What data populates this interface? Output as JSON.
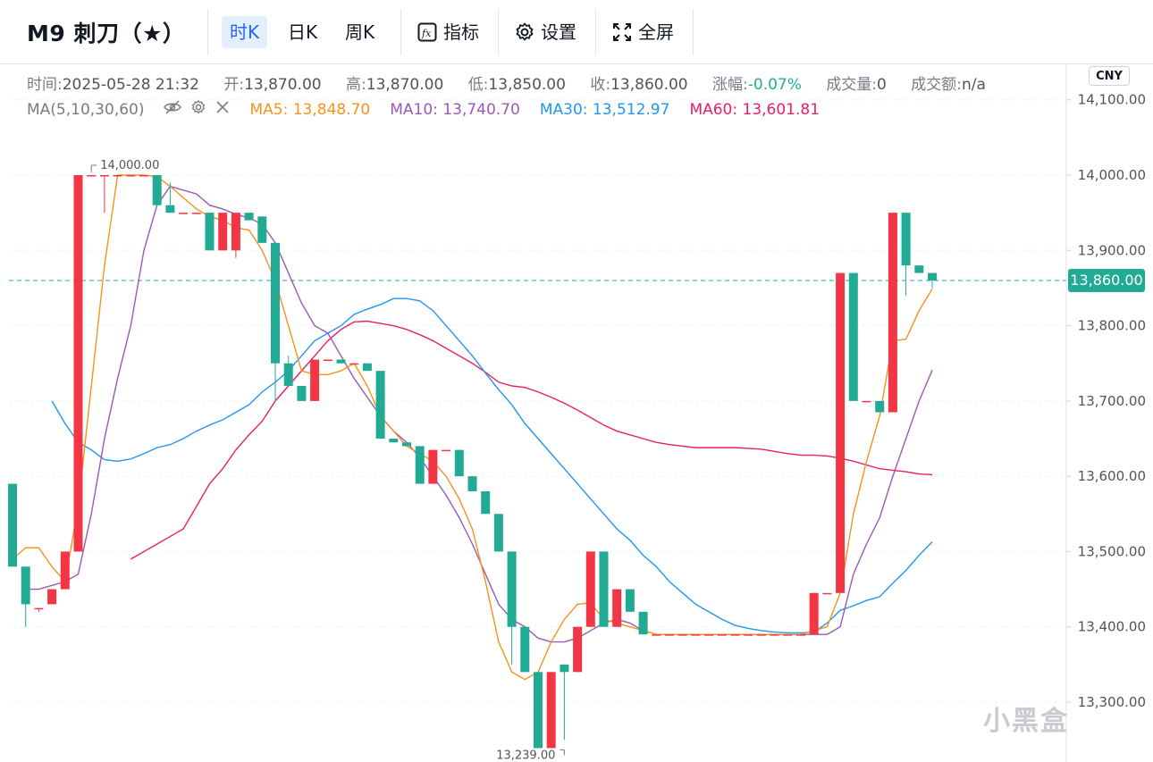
{
  "header": {
    "title": "M9 刺刀（★）",
    "timeframes": [
      {
        "label": "时K",
        "active": true
      },
      {
        "label": "日K",
        "active": false
      },
      {
        "label": "周K",
        "active": false
      }
    ],
    "tools": {
      "indicators": "指标",
      "settings": "设置",
      "fullscreen": "全屏"
    }
  },
  "info": {
    "time_key": "时间:",
    "time_val": "2025-05-28 21:32",
    "open_key": "开:",
    "open_val": "13,870.00",
    "high_key": "高:",
    "high_val": "13,870.00",
    "low_key": "低:",
    "low_val": "13,850.00",
    "close_key": "收:",
    "close_val": "13,860.00",
    "chg_key": "涨幅:",
    "chg_val": "-0.07%",
    "vol_key": "成交量:",
    "vol_val": "0",
    "amt_key": "成交额:",
    "amt_val": "n/a"
  },
  "ma": {
    "label": "MA(5,10,30,60)",
    "ma5": "MA5: 13,848.70",
    "ma10": "MA10: 13,740.70",
    "ma30": "MA30: 13,512.97",
    "ma60": "MA60: 13,601.81"
  },
  "currency": "CNY",
  "last_price_label": "13,860.00",
  "watermark": "小黑盒",
  "colors": {
    "up": "#f23645",
    "down": "#22ab94",
    "ma5": "#f7931a",
    "ma10": "#9b59b6",
    "ma30": "#2196f3",
    "ma60": "#e91e63"
  },
  "chart_data": {
    "type": "candlestick",
    "y_ticks": [
      "14,100.00",
      "14,000.00",
      "13,900.00",
      "13,800.00",
      "13,700.00",
      "13,600.00",
      "13,500.00",
      "13,400.00",
      "13,300.00"
    ],
    "y_tick_values": [
      14100,
      14000,
      13900,
      13800,
      13700,
      13600,
      13500,
      13400,
      13300
    ],
    "ylim": [
      13250,
      14135
    ],
    "last_price": 13860,
    "max_label": "14,000.00",
    "min_label": "13,239.00",
    "candles": [
      {
        "o": 13590,
        "h": 13590,
        "c": 13480,
        "l": 13480
      },
      {
        "o": 13480,
        "h": 13480,
        "c": 13430,
        "l": 13400
      },
      {
        "o": 13425,
        "h": 13425,
        "c": 13425,
        "l": 13420
      },
      {
        "o": 13430,
        "h": 13450,
        "c": 13450,
        "l": 13430
      },
      {
        "o": 13450,
        "h": 13500,
        "c": 13500,
        "l": 13450
      },
      {
        "o": 13500,
        "h": 14000,
        "c": 14000,
        "l": 13500
      },
      {
        "o": 14000,
        "h": 14000,
        "c": 14000,
        "l": 14000
      },
      {
        "o": 14000,
        "h": 14000,
        "c": 14000,
        "l": 13950
      },
      {
        "o": 14000,
        "h": 14000,
        "c": 14000,
        "l": 14000
      },
      {
        "o": 14000,
        "h": 14000,
        "c": 14000,
        "l": 14000
      },
      {
        "o": 14000,
        "h": 14000,
        "c": 14000,
        "l": 14000
      },
      {
        "o": 14000,
        "h": 14000,
        "c": 13960,
        "l": 13960
      },
      {
        "o": 13960,
        "h": 13990,
        "c": 13950,
        "l": 13950
      },
      {
        "o": 13950,
        "h": 13950,
        "c": 13950,
        "l": 13950
      },
      {
        "o": 13950,
        "h": 13950,
        "c": 13950,
        "l": 13950
      },
      {
        "o": 13950,
        "h": 13950,
        "c": 13900,
        "l": 13900
      },
      {
        "o": 13900,
        "h": 13950,
        "c": 13950,
        "l": 13900
      },
      {
        "o": 13900,
        "h": 13950,
        "c": 13950,
        "l": 13890
      },
      {
        "o": 13950,
        "h": 13950,
        "c": 13940,
        "l": 13940
      },
      {
        "o": 13945,
        "h": 13945,
        "c": 13910,
        "l": 13910
      },
      {
        "o": 13910,
        "h": 13910,
        "c": 13750,
        "l": 13700
      },
      {
        "o": 13750,
        "h": 13760,
        "c": 13720,
        "l": 13720
      },
      {
        "o": 13720,
        "h": 13720,
        "c": 13700,
        "l": 13700
      },
      {
        "o": 13700,
        "h": 13755,
        "c": 13755,
        "l": 13700
      },
      {
        "o": 13755,
        "h": 13755,
        "c": 13755,
        "l": 13755
      },
      {
        "o": 13755,
        "h": 13755,
        "c": 13750,
        "l": 13750
      },
      {
        "o": 13750,
        "h": 13750,
        "c": 13750,
        "l": 13750
      },
      {
        "o": 13750,
        "h": 13750,
        "c": 13740,
        "l": 13740
      },
      {
        "o": 13740,
        "h": 13740,
        "c": 13650,
        "l": 13650
      },
      {
        "o": 13650,
        "h": 13650,
        "c": 13645,
        "l": 13645
      },
      {
        "o": 13645,
        "h": 13645,
        "c": 13640,
        "l": 13640
      },
      {
        "o": 13640,
        "h": 13640,
        "c": 13590,
        "l": 13590
      },
      {
        "o": 13590,
        "h": 13635,
        "c": 13635,
        "l": 13590
      },
      {
        "o": 13635,
        "h": 13635,
        "c": 13635,
        "l": 13635
      },
      {
        "o": 13635,
        "h": 13635,
        "c": 13600,
        "l": 13600
      },
      {
        "o": 13600,
        "h": 13600,
        "c": 13580,
        "l": 13580
      },
      {
        "o": 13580,
        "h": 13580,
        "c": 13550,
        "l": 13550
      },
      {
        "o": 13550,
        "h": 13550,
        "c": 13500,
        "l": 13500
      },
      {
        "o": 13500,
        "h": 13500,
        "c": 13400,
        "l": 13350
      },
      {
        "o": 13400,
        "h": 13400,
        "c": 13340,
        "l": 13340
      },
      {
        "o": 13340,
        "h": 13340,
        "c": 13239,
        "l": 13239
      },
      {
        "o": 13239,
        "h": 13340,
        "c": 13340,
        "l": 13239
      },
      {
        "o": 13350,
        "h": 13350,
        "c": 13340,
        "l": 13250
      },
      {
        "o": 13340,
        "h": 13400,
        "c": 13400,
        "l": 13340
      },
      {
        "o": 13400,
        "h": 13500,
        "c": 13500,
        "l": 13400
      },
      {
        "o": 13500,
        "h": 13500,
        "c": 13400,
        "l": 13400
      },
      {
        "o": 13400,
        "h": 13450,
        "c": 13450,
        "l": 13400
      },
      {
        "o": 13450,
        "h": 13450,
        "c": 13420,
        "l": 13420
      },
      {
        "o": 13420,
        "h": 13420,
        "c": 13390,
        "l": 13390
      },
      {
        "o": 13390,
        "h": 13390,
        "c": 13390,
        "l": 13390
      },
      {
        "o": 13390,
        "h": 13390,
        "c": 13390,
        "l": 13390
      },
      {
        "o": 13390,
        "h": 13390,
        "c": 13390,
        "l": 13390
      },
      {
        "o": 13390,
        "h": 13390,
        "c": 13390,
        "l": 13390
      },
      {
        "o": 13390,
        "h": 13390,
        "c": 13390,
        "l": 13390
      },
      {
        "o": 13390,
        "h": 13390,
        "c": 13390,
        "l": 13390
      },
      {
        "o": 13390,
        "h": 13390,
        "c": 13390,
        "l": 13390
      },
      {
        "o": 13390,
        "h": 13390,
        "c": 13390,
        "l": 13390
      },
      {
        "o": 13390,
        "h": 13390,
        "c": 13390,
        "l": 13390
      },
      {
        "o": 13390,
        "h": 13390,
        "c": 13390,
        "l": 13390
      },
      {
        "o": 13390,
        "h": 13390,
        "c": 13390,
        "l": 13390
      },
      {
        "o": 13390,
        "h": 13390,
        "c": 13390,
        "l": 13390
      },
      {
        "o": 13390,
        "h": 13445,
        "c": 13445,
        "l": 13390
      },
      {
        "o": 13445,
        "h": 13445,
        "c": 13445,
        "l": 13445
      },
      {
        "o": 13445,
        "h": 13870,
        "c": 13870,
        "l": 13445
      },
      {
        "o": 13870,
        "h": 13870,
        "c": 13700,
        "l": 13700
      },
      {
        "o": 13700,
        "h": 13700,
        "c": 13700,
        "l": 13700
      },
      {
        "o": 13700,
        "h": 13700,
        "c": 13685,
        "l": 13685
      },
      {
        "o": 13685,
        "h": 13950,
        "c": 13950,
        "l": 13685
      },
      {
        "o": 13950,
        "h": 13950,
        "c": 13880,
        "l": 13840
      },
      {
        "o": 13880,
        "h": 13880,
        "c": 13870,
        "l": 13870
      },
      {
        "o": 13870,
        "h": 13870,
        "c": 13860,
        "l": 13850
      }
    ],
    "ma5": [
      13490,
      13505,
      13505,
      13480,
      13460,
      13560,
      13720,
      13880,
      14000,
      14000,
      14000,
      13998,
      13985,
      13970,
      13955,
      13945,
      13940,
      13930,
      13927,
      13900,
      13860,
      13800,
      13740,
      13735,
      13735,
      13740,
      13750,
      13720,
      13680,
      13660,
      13640,
      13630,
      13620,
      13600,
      13570,
      13530,
      13460,
      13380,
      13340,
      13330,
      13340,
      13380,
      13410,
      13430,
      13432,
      13410,
      13405,
      13400,
      13395,
      13390,
      13390,
      13390,
      13390,
      13390,
      13390,
      13390,
      13390,
      13390,
      13390,
      13390,
      13390,
      13395,
      13400,
      13445,
      13550,
      13620,
      13680,
      13780,
      13782,
      13820,
      13849
    ],
    "ma10": [
      13450,
      13450,
      13455,
      13460,
      13470,
      13550,
      13650,
      13730,
      13800,
      13900,
      13960,
      13985,
      13980,
      13975,
      13960,
      13955,
      13948,
      13943,
      13935,
      13910,
      13870,
      13830,
      13800,
      13790,
      13760,
      13730,
      13705,
      13680,
      13660,
      13645,
      13625,
      13600,
      13575,
      13545,
      13510,
      13470,
      13430,
      13410,
      13400,
      13385,
      13380,
      13380,
      13385,
      13395,
      13405,
      13410,
      13405,
      13395,
      13390,
      13390,
      13390,
      13390,
      13390,
      13390,
      13390,
      13390,
      13390,
      13390,
      13390,
      13390,
      13390,
      13390,
      13400,
      13470,
      13510,
      13545,
      13600,
      13650,
      13700,
      13741
    ],
    "ma30": [
      13700,
      13670,
      13645,
      13635,
      13622,
      13620,
      13623,
      13630,
      13638,
      13642,
      13650,
      13660,
      13668,
      13675,
      13685,
      13695,
      13712,
      13725,
      13740,
      13760,
      13780,
      13790,
      13800,
      13815,
      13822,
      13828,
      13836,
      13836,
      13833,
      13820,
      13800,
      13780,
      13760,
      13737,
      13715,
      13695,
      13670,
      13650,
      13630,
      13610,
      13590,
      13570,
      13550,
      13530,
      13515,
      13495,
      13480,
      13460,
      13445,
      13430,
      13420,
      13410,
      13402,
      13398,
      13395,
      13393,
      13392,
      13392,
      13393,
      13405,
      13422,
      13428,
      13435,
      13440,
      13458,
      13475,
      13495,
      13513
    ],
    "ma60": [
      13490,
      13500,
      13510,
      13520,
      13530,
      13560,
      13590,
      13610,
      13635,
      13655,
      13673,
      13700,
      13720,
      13740,
      13760,
      13780,
      13795,
      13805,
      13806,
      13803,
      13800,
      13795,
      13788,
      13780,
      13770,
      13760,
      13750,
      13738,
      13725,
      13720,
      13718,
      13712,
      13705,
      13697,
      13688,
      13678,
      13668,
      13660,
      13655,
      13650,
      13645,
      13642,
      13640,
      13638,
      13638,
      13638,
      13638,
      13637,
      13636,
      13633,
      13630,
      13628,
      13628,
      13627,
      13624,
      13620,
      13615,
      13610,
      13608,
      13606,
      13603,
      13602
    ]
  }
}
